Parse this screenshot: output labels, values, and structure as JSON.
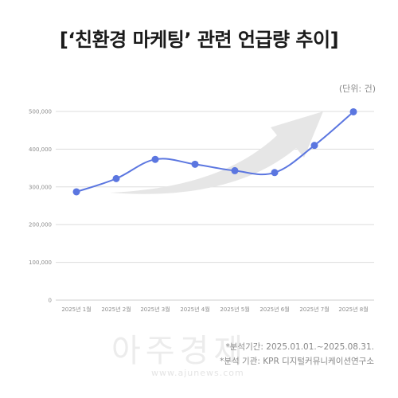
{
  "title": "[‘친환경 마케팅’ 관련 언급량 추이]",
  "unit_label": "(단위: 건)",
  "chart_data": {
    "type": "line",
    "title": "[‘친환경 마케팅’ 관련 언급량 추이]",
    "xlabel": "",
    "ylabel": "",
    "categories": [
      "2025년 1월",
      "2025년 2월",
      "2025년 3월",
      "2025년 4월",
      "2025년 5월",
      "2025년 6월",
      "2025년 7월",
      "2025년 8월"
    ],
    "series": [
      {
        "values": [
          287000,
          322000,
          373000,
          360000,
          343000,
          338000,
          410000,
          499000
        ]
      }
    ],
    "ylim": [
      0,
      500000
    ],
    "y_ticks": [
      "0",
      "100,000",
      "200,000",
      "300,000",
      "400,000",
      "500,000"
    ],
    "grid": true,
    "colors": {
      "line": "#5b76e0",
      "grid": "#dddddd",
      "arrow": "#e6e6e6"
    }
  },
  "footer": {
    "period": "*분석기간: 2025.01.01.~2025.08.31.",
    "agency": "*분석 기관: KPR 디지털커뮤니케이션연구소"
  },
  "watermark": {
    "text": "아주경제",
    "url": "www.ajunews.com"
  }
}
